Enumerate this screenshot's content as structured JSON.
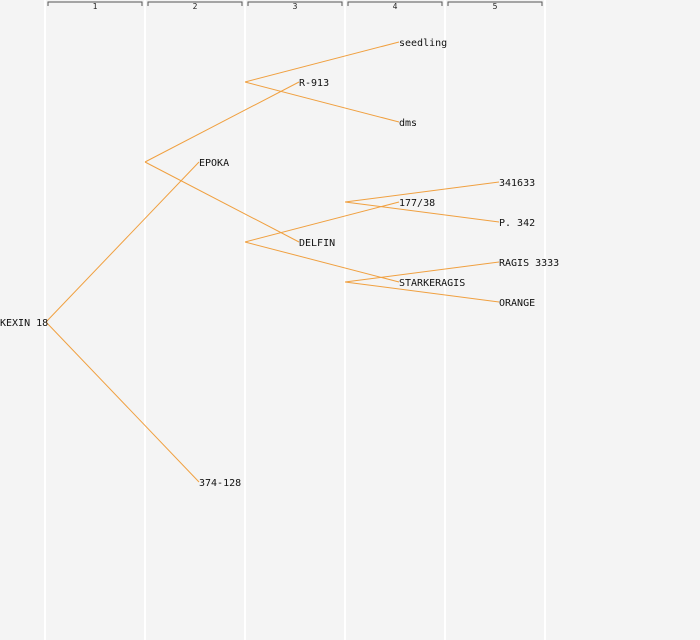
{
  "generations": [
    "1",
    "2",
    "3",
    "4",
    "5"
  ],
  "nodes": [
    {
      "id": "kexin",
      "label": "KEXIN 18",
      "gen": 0,
      "row": 8
    },
    {
      "id": "epoka",
      "label": "EPOKA",
      "gen": 1,
      "row": 4
    },
    {
      "id": "n374",
      "label": "374-128",
      "gen": 1,
      "row": 12
    },
    {
      "id": "r913",
      "label": "R-913",
      "gen": 2,
      "row": 2
    },
    {
      "id": "delfin",
      "label": "DELFIN",
      "gen": 2,
      "row": 6
    },
    {
      "id": "seedling",
      "label": "seedling",
      "gen": 3,
      "row": 1
    },
    {
      "id": "dms",
      "label": "dms",
      "gen": 3,
      "row": 3
    },
    {
      "id": "n177",
      "label": "177/38",
      "gen": 3,
      "row": 5
    },
    {
      "id": "starker",
      "label": "STARKERAGIS",
      "gen": 3,
      "row": 7
    },
    {
      "id": "n341633",
      "label": "341633",
      "gen": 4,
      "row": 4.5
    },
    {
      "id": "p342",
      "label": "P. 342",
      "gen": 4,
      "row": 5.5
    },
    {
      "id": "ragis",
      "label": "RAGIS 3333",
      "gen": 4,
      "row": 6.5
    },
    {
      "id": "orange",
      "label": "ORANGE",
      "gen": 4,
      "row": 7.5
    }
  ],
  "edges": [
    [
      "kexin",
      "epoka"
    ],
    [
      "kexin",
      "n374"
    ],
    [
      "epoka",
      "r913"
    ],
    [
      "epoka",
      "delfin"
    ],
    [
      "r913",
      "seedling"
    ],
    [
      "r913",
      "dms"
    ],
    [
      "delfin",
      "n177"
    ],
    [
      "delfin",
      "starker"
    ],
    [
      "n177",
      "n341633"
    ],
    [
      "n177",
      "p342"
    ],
    [
      "starker",
      "ragis"
    ],
    [
      "starker",
      "orange"
    ]
  ]
}
